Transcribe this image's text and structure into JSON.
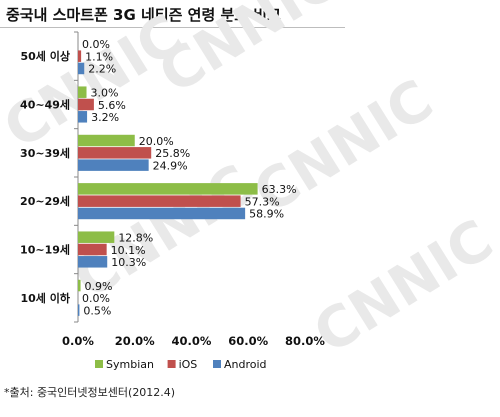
{
  "title": "중국내 스마트폰 3G 네티즌 연령 분포 비교",
  "source": "*출처: 중국인터넷정보센터(2012.4)",
  "watermark": "CNNIC",
  "colors": {
    "Symbian": "#8dbd47",
    "iOS": "#c0504d",
    "Android": "#4f81bd"
  },
  "chart_data": {
    "type": "bar",
    "orientation": "horizontal",
    "categories": [
      "50세 이상",
      "40~49세",
      "30~39세",
      "20~29세",
      "10~19세",
      "10세 이하"
    ],
    "series": [
      {
        "name": "Symbian",
        "values": [
          0.0,
          3.0,
          20.0,
          63.3,
          12.8,
          0.9
        ],
        "labels": [
          "0.0%",
          "3.0%",
          "20.0%",
          "63.3%",
          "12.8%",
          "0.9%"
        ]
      },
      {
        "name": "iOS",
        "values": [
          1.1,
          5.6,
          25.8,
          57.3,
          10.1,
          0.0
        ],
        "labels": [
          "1.1%",
          "5.6%",
          "25.8%",
          "57.3%",
          "10.1%",
          "0.0%"
        ]
      },
      {
        "name": "Android",
        "values": [
          2.2,
          3.2,
          24.9,
          58.9,
          10.3,
          0.5
        ],
        "labels": [
          "2.2%",
          "3.2%",
          "24.9%",
          "58.9%",
          "10.3%",
          "0.5%"
        ]
      }
    ],
    "xlim": [
      0,
      80
    ],
    "xticks": [
      0,
      20,
      40,
      60,
      80
    ],
    "xtick_labels": [
      "0.0%",
      "20.0%",
      "40.0%",
      "60.0%",
      "80.0%"
    ],
    "grid": false,
    "legend_position": "bottom"
  }
}
